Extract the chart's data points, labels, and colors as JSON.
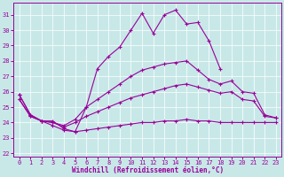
{
  "background_color": "#c8e8e8",
  "grid_color": "#ffffff",
  "line_color": "#990099",
  "xlabel": "Windchill (Refroidissement éolien,°C)",
  "xlim": [
    -0.5,
    23.5
  ],
  "ylim": [
    21.8,
    31.8
  ],
  "yticks": [
    22,
    23,
    24,
    25,
    26,
    27,
    28,
    29,
    30,
    31
  ],
  "xticks": [
    0,
    1,
    2,
    3,
    4,
    5,
    6,
    7,
    8,
    9,
    10,
    11,
    12,
    13,
    14,
    15,
    16,
    17,
    18,
    19,
    20,
    21,
    22,
    23
  ],
  "series1": {
    "x": [
      0,
      1,
      2,
      3,
      4,
      5,
      6,
      7,
      8,
      9,
      10,
      11,
      12,
      13,
      14,
      15,
      16,
      17,
      18
    ],
    "y": [
      25.8,
      24.5,
      24.1,
      24.1,
      23.6,
      23.4,
      25.0,
      27.5,
      28.3,
      28.9,
      30.0,
      31.1,
      29.8,
      31.0,
      31.3,
      30.4,
      30.5,
      29.3,
      27.5
    ]
  },
  "series2": {
    "x": [
      0,
      1,
      2,
      3,
      4,
      5,
      6,
      7,
      8,
      9,
      10,
      11,
      12,
      13,
      14,
      15,
      16,
      17,
      18,
      19,
      20,
      21,
      22,
      23
    ],
    "y": [
      25.8,
      24.5,
      24.1,
      24.0,
      23.8,
      24.2,
      25.0,
      25.5,
      26.0,
      26.5,
      27.0,
      27.4,
      27.6,
      27.8,
      27.9,
      28.0,
      27.4,
      26.8,
      26.5,
      26.7,
      26.0,
      25.9,
      24.5,
      24.3
    ]
  },
  "series3": {
    "x": [
      0,
      1,
      2,
      3,
      4,
      5,
      6,
      7,
      8,
      9,
      10,
      11,
      12,
      13,
      14,
      15,
      16,
      17,
      18,
      19,
      20,
      21,
      22,
      23
    ],
    "y": [
      25.5,
      24.4,
      24.1,
      24.0,
      23.7,
      24.0,
      24.4,
      24.7,
      25.0,
      25.3,
      25.6,
      25.8,
      26.0,
      26.2,
      26.4,
      26.5,
      26.3,
      26.1,
      25.9,
      26.0,
      25.5,
      25.4,
      24.4,
      24.3
    ]
  },
  "series4": {
    "x": [
      0,
      1,
      2,
      3,
      4,
      5,
      6,
      7,
      8,
      9,
      10,
      11,
      12,
      13,
      14,
      15,
      16,
      17,
      18,
      19,
      20,
      21,
      22,
      23
    ],
    "y": [
      25.5,
      24.4,
      24.1,
      23.8,
      23.5,
      23.4,
      23.5,
      23.6,
      23.7,
      23.8,
      23.9,
      24.0,
      24.0,
      24.1,
      24.1,
      24.2,
      24.1,
      24.1,
      24.0,
      24.0,
      24.0,
      24.0,
      24.0,
      24.0
    ]
  }
}
